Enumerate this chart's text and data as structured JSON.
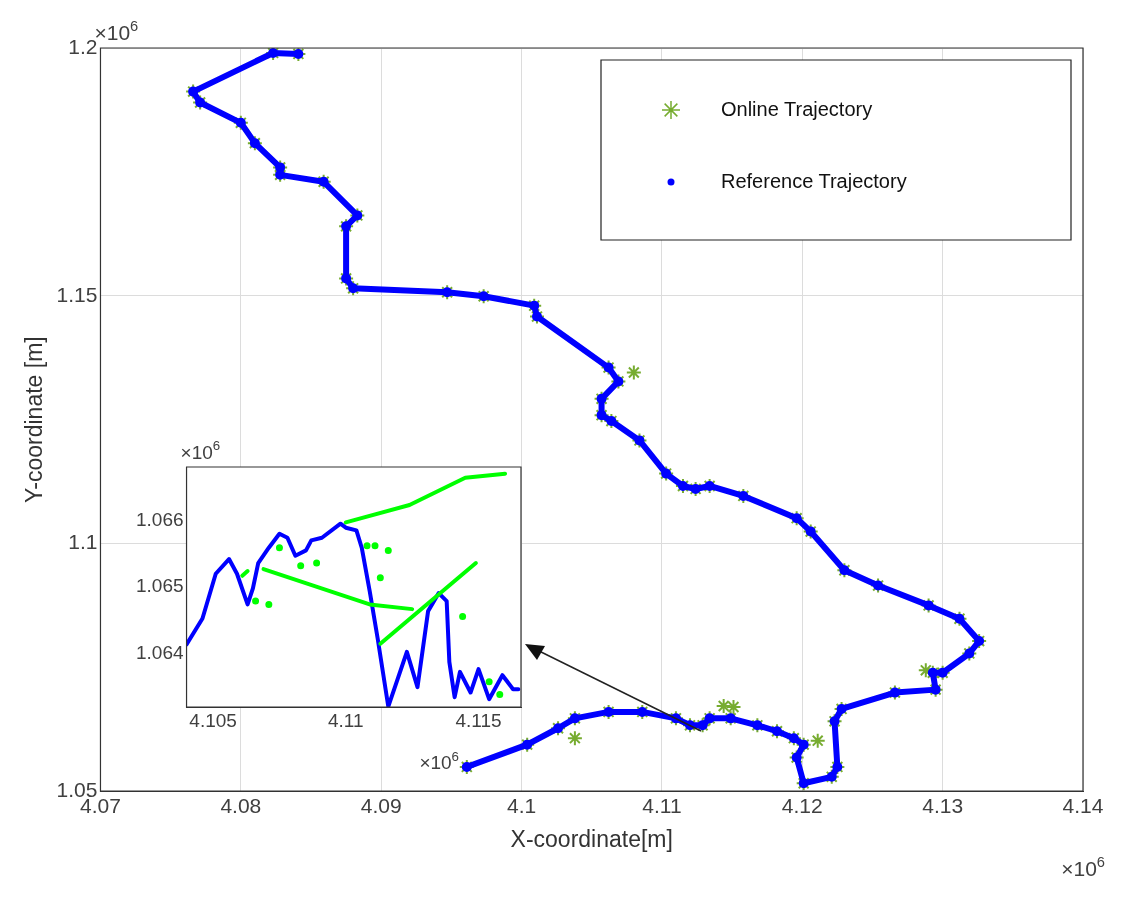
{
  "chart_data": [
    {
      "type": "scatter",
      "xlabel": "X-coordinate[m]",
      "ylabel": "Y-coordinate [m]",
      "xlim": [
        4.07,
        4.14
      ],
      "xticks": [
        4.07,
        4.08,
        4.09,
        4.1,
        4.11,
        4.12,
        4.13,
        4.14
      ],
      "ylim": [
        1.05,
        1.2
      ],
      "yticks": [
        1.05,
        1.1,
        1.15,
        1.2
      ],
      "grid": true,
      "legend": "top right",
      "annotations": [
        "×10$^{6}$",
        "×10$^{6}$"
      ],
      "series": [
        {
          "name": "Online Trajectory",
          "marker": "cross",
          "color": "#77ac30",
          "x": [
            4.0841,
            4.0823,
            4.0766,
            4.0771,
            4.08,
            4.081,
            4.0828,
            4.0828,
            4.0859,
            4.0883,
            4.0875,
            4.0875,
            4.088,
            4.0947,
            4.0973,
            4.1009,
            4.1011,
            4.1062,
            4.1069,
            4.108,
            4.1057,
            4.1057,
            4.1064,
            4.1084,
            4.1103,
            4.1115,
            4.1124,
            4.1134,
            4.1158,
            4.1196,
            4.1206,
            4.123,
            4.1254,
            4.129,
            4.1312,
            4.1326,
            4.1319,
            4.13,
            4.1288,
            4.1293,
            4.1295,
            4.1266,
            4.1228,
            4.1223,
            4.1225,
            4.1221,
            4.1201,
            4.1196,
            4.1201,
            4.1211,
            4.1194,
            4.1182,
            4.1168,
            4.1151,
            4.1149,
            4.1144,
            4.1134,
            4.1129,
            4.112,
            4.111,
            4.1086,
            4.1062,
            4.1038,
            4.1038,
            4.1026,
            4.1004,
            4.0961
          ],
          "values": [
            1.1988,
            1.199,
            1.1912,
            1.189,
            1.1849,
            1.1808,
            1.1759,
            1.1744,
            1.173,
            1.1662,
            1.164,
            1.1535,
            1.1515,
            1.1507,
            1.1499,
            1.148,
            1.1458,
            1.1355,
            1.1327,
            1.1345,
            1.1292,
            1.1259,
            1.1247,
            1.1208,
            1.1141,
            1.1116,
            1.111,
            1.1116,
            1.1096,
            1.1051,
            1.1024,
            1.0946,
            1.0915,
            1.0875,
            1.0848,
            1.0803,
            1.0778,
            1.0739,
            1.0744,
            1.0739,
            1.0705,
            1.0699,
            1.0666,
            1.0641,
            1.0549,
            1.0529,
            1.0516,
            1.0568,
            1.0594,
            1.0602,
            1.0607,
            1.0621,
            1.0633,
            1.067,
            1.0647,
            1.0672,
            1.0647,
            1.0633,
            1.0633,
            1.0647,
            1.066,
            1.066,
            1.0647,
            1.0607,
            1.0627,
            1.0594,
            1.0549
          ]
        },
        {
          "name": "Reference Trajectory",
          "type": "line",
          "marker": "circle",
          "color": "#0000ff",
          "x": [
            4.0841,
            4.0823,
            4.0766,
            4.0771,
            4.08,
            4.081,
            4.0828,
            4.0828,
            4.0859,
            4.0883,
            4.0875,
            4.0875,
            4.088,
            4.0947,
            4.0973,
            4.1009,
            4.1011,
            4.1062,
            4.1069,
            4.1057,
            4.1057,
            4.1064,
            4.1084,
            4.1103,
            4.1115,
            4.1124,
            4.1134,
            4.1158,
            4.1196,
            4.1206,
            4.123,
            4.1254,
            4.129,
            4.1312,
            4.1326,
            4.1319,
            4.13,
            4.1293,
            4.1295,
            4.1266,
            4.1228,
            4.1223,
            4.1225,
            4.1221,
            4.1201,
            4.1196,
            4.1201,
            4.1194,
            4.1182,
            4.1168,
            4.1149,
            4.1134,
            4.1129,
            4.112,
            4.111,
            4.1086,
            4.1062,
            4.1038,
            4.1026,
            4.1004,
            4.0961
          ],
          "values": [
            1.1988,
            1.199,
            1.1912,
            1.189,
            1.1849,
            1.1808,
            1.1759,
            1.1744,
            1.173,
            1.1662,
            1.164,
            1.1535,
            1.1515,
            1.1507,
            1.1499,
            1.148,
            1.1458,
            1.1355,
            1.1327,
            1.1292,
            1.1259,
            1.1247,
            1.1208,
            1.1141,
            1.1116,
            1.111,
            1.1116,
            1.1096,
            1.1051,
            1.1024,
            1.0946,
            1.0915,
            1.0875,
            1.0848,
            1.0803,
            1.0778,
            1.0739,
            1.0739,
            1.0705,
            1.0699,
            1.0666,
            1.0641,
            1.0549,
            1.0529,
            1.0516,
            1.0568,
            1.0594,
            1.0607,
            1.0621,
            1.0633,
            1.0647,
            1.0647,
            1.0633,
            1.0633,
            1.0647,
            1.066,
            1.066,
            1.0647,
            1.0627,
            1.0594,
            1.0549
          ]
        }
      ]
    },
    {
      "type": "line",
      "xlim": [
        4.104,
        4.1166
      ],
      "xticks": [
        4.105,
        4.11,
        4.115
      ],
      "ylim": [
        1.0632,
        1.0668
      ],
      "yticks": [
        1.064,
        1.065,
        1.066
      ],
      "annotations": [
        "×10$^{6}$",
        "×10$^{6}$"
      ],
      "series": [
        {
          "marker": "none",
          "color": "#00ff00",
          "x": [
            4.11,
            4.1124,
            4.1145,
            4.116
          ],
          "values": [
            1.06597,
            1.06623,
            1.06664,
            1.0667
          ]
        },
        {
          "type": "line",
          "marker": "none",
          "color": "#00ff00",
          "x": [
            4.1069,
            4.1109,
            4.1125
          ],
          "values": [
            1.06527,
            1.06474,
            1.06467
          ]
        },
        {
          "type": "line",
          "marker": "none",
          "color": "#00ff00",
          "x": [
            4.1113,
            4.1149
          ],
          "values": [
            1.06415,
            1.06536
          ]
        },
        {
          "type": "line",
          "marker": "none",
          "color": "#00ff00",
          "x": [
            4.1061,
            4.1063
          ],
          "values": [
            1.06517,
            1.06524
          ]
        },
        {
          "type": "scatter",
          "marker": "circle",
          "color": "#00ff00",
          "x": [
            4.1066,
            4.1071,
            4.1075,
            4.1083,
            4.1089,
            4.1108,
            4.1111,
            4.1116,
            4.1113,
            4.1144,
            4.1154,
            4.1158
          ],
          "values": [
            1.06479,
            1.06474,
            1.06559,
            1.06532,
            1.06536,
            1.06562,
            1.06562,
            1.06555,
            1.06514,
            1.06456,
            1.06358,
            1.06339
          ]
        },
        {
          "type": "line",
          "marker": "none",
          "color": "#0000ff",
          "x": [
            4.104,
            4.1046,
            4.1051,
            4.1056,
            4.1059,
            4.1063,
            4.1065,
            4.1067,
            4.1071,
            4.1075,
            4.1078,
            4.1081,
            4.1085,
            4.1087,
            4.1091,
            4.1098,
            4.11,
            4.1104,
            4.1106,
            4.1109,
            4.1112,
            4.1116,
            4.1123,
            4.1127,
            4.1131,
            4.1135,
            4.1138,
            4.1139,
            4.1141,
            4.1143,
            4.1147,
            4.115,
            4.1154,
            4.1159,
            4.1163,
            4.1165
          ],
          "values": [
            1.06414,
            1.06453,
            1.0652,
            1.06542,
            1.0652,
            1.06474,
            1.06498,
            1.06536,
            1.06559,
            1.0658,
            1.06574,
            1.06547,
            1.06555,
            1.0657,
            1.06574,
            1.06595,
            1.06589,
            1.06585,
            1.06559,
            1.06494,
            1.06423,
            1.06321,
            1.06403,
            1.0635,
            1.06464,
            1.06491,
            1.06479,
            1.06388,
            1.06335,
            1.06373,
            1.06342,
            1.06377,
            1.06332,
            1.06368,
            1.06347,
            1.06347
          ]
        }
      ]
    }
  ]
}
